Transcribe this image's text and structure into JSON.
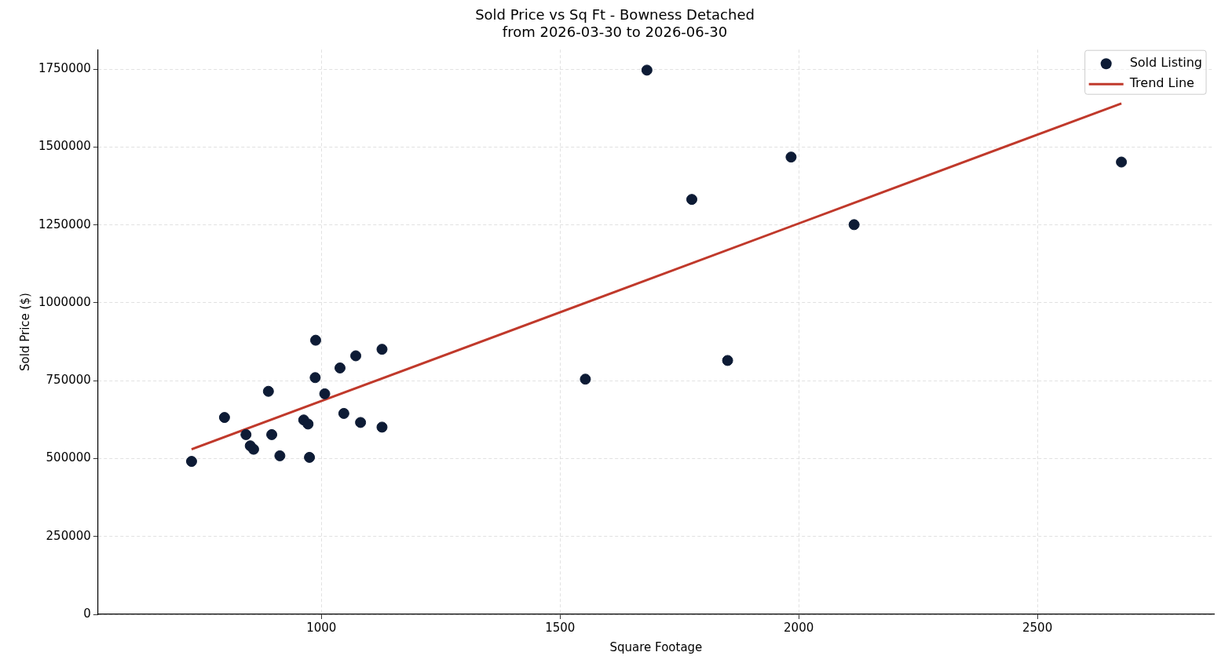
{
  "chart_data": {
    "type": "scatter",
    "title": "Sold Price vs Sq Ft - Bowness Detached",
    "subtitle": "from 2026-03-30 to 2026-06-30",
    "xlabel": "Square Footage",
    "ylabel": "Sold Price ($)",
    "xlim": [
      532,
      2870
    ],
    "xticks": [
      1000,
      1500,
      2000,
      2500
    ],
    "ylim": [
      0,
      1813000
    ],
    "yticks": [
      0,
      250000,
      500000,
      750000,
      1000000,
      1250000,
      1500000,
      1750000
    ],
    "grid": true,
    "legend": "top right",
    "series": [
      {
        "name": "Sold Listing",
        "marker": "circle",
        "color": "#0d1b35",
        "x": [
          728,
          797,
          842,
          851,
          858,
          889,
          896,
          913,
          963,
          972,
          975,
          987,
          988,
          1007,
          1039,
          1047,
          1072,
          1082,
          1127,
          1127,
          1553,
          1682,
          1776,
          1851,
          1984,
          2116,
          2676
        ],
        "values": [
          491000,
          632000,
          577000,
          541000,
          530000,
          716000,
          577000,
          509000,
          624000,
          611000,
          504000,
          760000,
          880000,
          708000,
          791000,
          645000,
          830000,
          616000,
          851000,
          601000,
          755000,
          1747000,
          1332000,
          815000,
          1468000,
          1251000,
          1452000
        ]
      },
      {
        "name": "Trend Line",
        "type": "line",
        "marker": "none",
        "color": "#c0392b",
        "line_style": "solid",
        "x": [
          728,
          2676
        ],
        "values": [
          530000,
          1640000
        ]
      }
    ]
  }
}
